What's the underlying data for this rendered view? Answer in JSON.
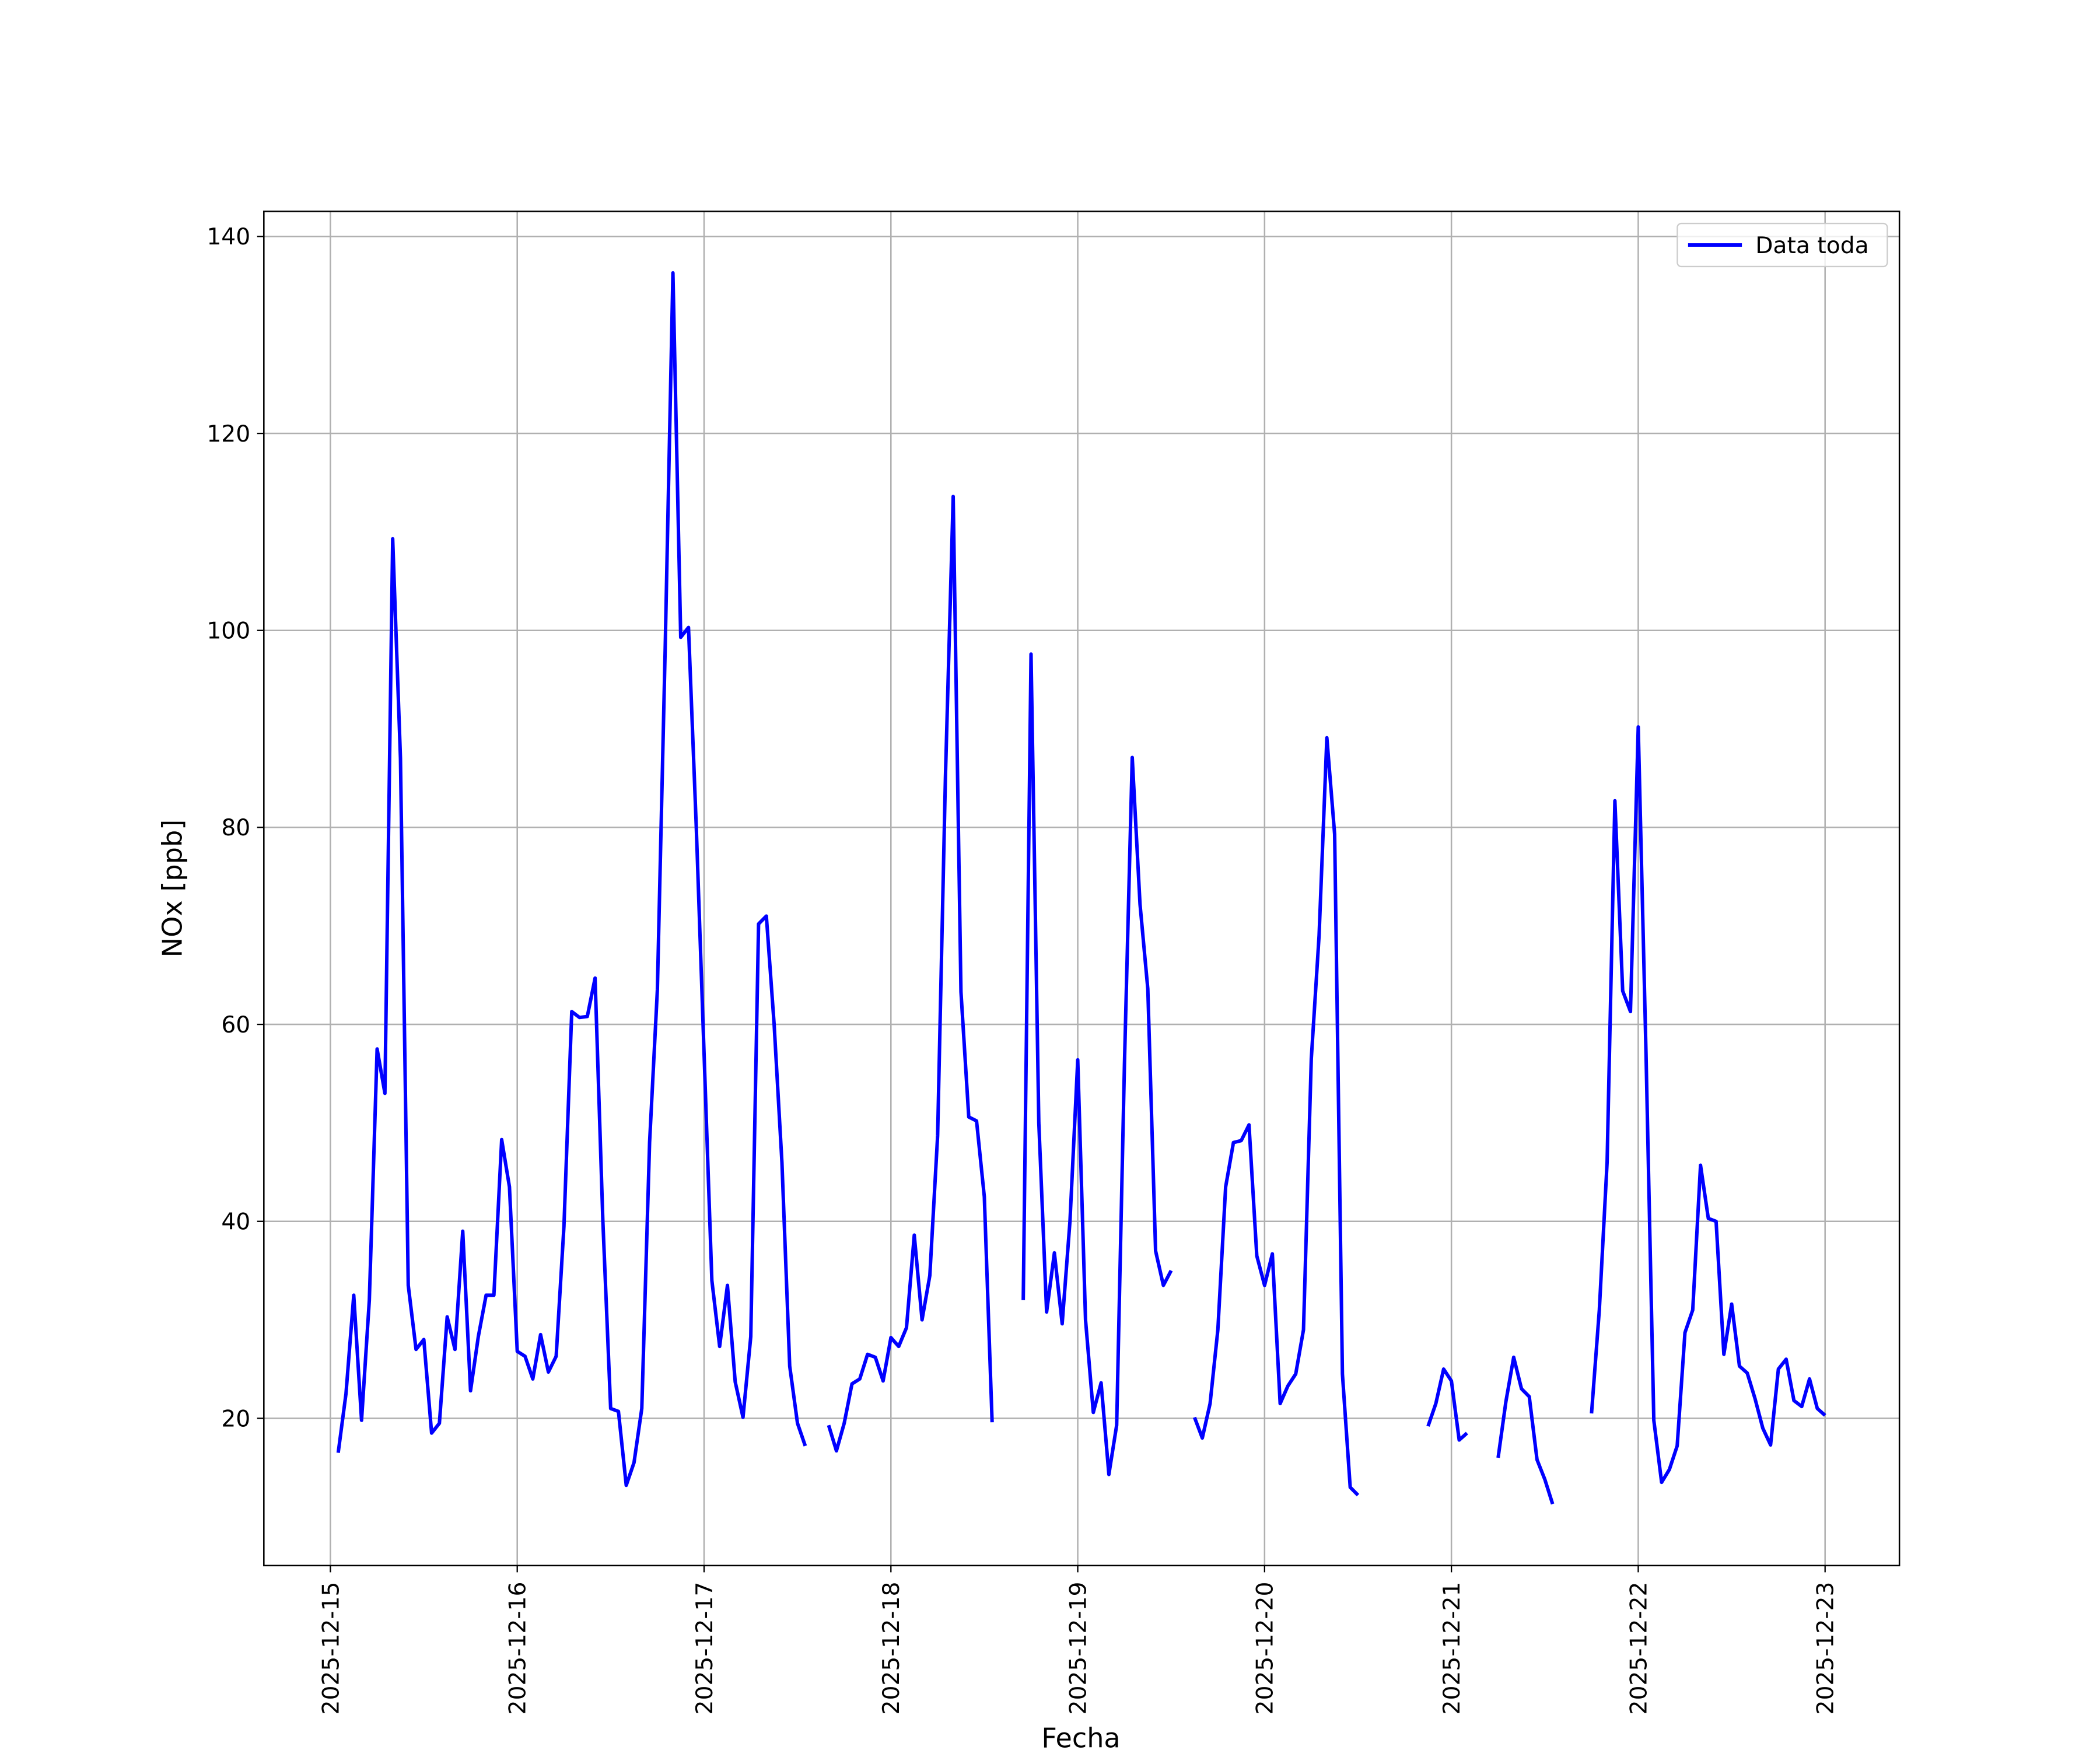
{
  "chart_data": {
    "type": "line",
    "xlabel": "Fecha",
    "ylabel": "NOx [ppb]",
    "x": [
      "2025-12-15T01:00",
      "2025-12-15T02:00",
      "2025-12-15T03:00",
      "2025-12-15T04:00",
      "2025-12-15T05:00",
      "2025-12-15T06:00",
      "2025-12-15T07:00",
      "2025-12-15T08:00",
      "2025-12-15T09:00",
      "2025-12-15T10:00",
      "2025-12-15T11:00",
      "2025-12-15T12:00",
      "2025-12-15T13:00",
      "2025-12-15T14:00",
      "2025-12-15T15:00",
      "2025-12-15T16:00",
      "2025-12-15T17:00",
      "2025-12-15T18:00",
      "2025-12-15T19:00",
      "2025-12-15T20:00",
      "2025-12-15T21:00",
      "2025-12-15T22:00",
      "2025-12-15T23:00",
      "2025-12-16T00:00",
      "2025-12-16T01:00",
      "2025-12-16T02:00",
      "2025-12-16T03:00",
      "2025-12-16T04:00",
      "2025-12-16T05:00",
      "2025-12-16T06:00",
      "2025-12-16T07:00",
      "2025-12-16T08:00",
      "2025-12-16T09:00",
      "2025-12-16T10:00",
      "2025-12-16T11:00",
      "2025-12-16T12:00",
      "2025-12-16T13:00",
      "2025-12-16T14:00",
      "2025-12-16T15:00",
      "2025-12-16T16:00",
      "2025-12-16T17:00",
      "2025-12-16T18:00",
      "2025-12-16T19:00",
      "2025-12-16T20:00",
      "2025-12-16T21:00",
      "2025-12-16T22:00",
      "2025-12-16T23:00",
      "2025-12-17T00:00",
      "2025-12-17T01:00",
      "2025-12-17T02:00",
      "2025-12-17T03:00",
      "2025-12-17T04:00",
      "2025-12-17T05:00",
      "2025-12-17T06:00",
      "2025-12-17T07:00",
      "2025-12-17T08:00",
      "2025-12-17T09:00",
      "2025-12-17T10:00",
      "2025-12-17T11:00",
      "2025-12-17T12:00",
      "2025-12-17T13:00",
      "2025-12-17T14:00",
      "2025-12-17T15:00",
      "2025-12-17T16:00",
      "2025-12-17T17:00",
      "2025-12-17T18:00",
      "2025-12-17T19:00",
      "2025-12-17T20:00",
      "2025-12-17T21:00",
      "2025-12-17T22:00",
      "2025-12-17T23:00",
      "2025-12-18T00:00",
      "2025-12-18T01:00",
      "2025-12-18T02:00",
      "2025-12-18T03:00",
      "2025-12-18T04:00",
      "2025-12-18T05:00",
      "2025-12-18T06:00",
      "2025-12-18T07:00",
      "2025-12-18T08:00",
      "2025-12-18T09:00",
      "2025-12-18T10:00",
      "2025-12-18T11:00",
      "2025-12-18T12:00",
      "2025-12-18T13:00",
      "2025-12-18T14:00",
      "2025-12-18T15:00",
      "2025-12-18T16:00",
      "2025-12-18T17:00",
      "2025-12-18T18:00",
      "2025-12-18T19:00",
      "2025-12-18T20:00",
      "2025-12-18T21:00",
      "2025-12-18T22:00",
      "2025-12-18T23:00",
      "2025-12-19T00:00",
      "2025-12-19T01:00",
      "2025-12-19T02:00",
      "2025-12-19T03:00",
      "2025-12-19T04:00",
      "2025-12-19T05:00",
      "2025-12-19T06:00",
      "2025-12-19T07:00",
      "2025-12-19T08:00",
      "2025-12-19T09:00",
      "2025-12-19T10:00",
      "2025-12-19T11:00",
      "2025-12-19T12:00",
      "2025-12-19T13:00",
      "2025-12-19T14:00",
      "2025-12-19T15:00",
      "2025-12-19T16:00",
      "2025-12-19T17:00",
      "2025-12-19T18:00",
      "2025-12-19T19:00",
      "2025-12-19T20:00",
      "2025-12-19T21:00",
      "2025-12-19T22:00",
      "2025-12-19T23:00",
      "2025-12-20T00:00",
      "2025-12-20T01:00",
      "2025-12-20T02:00",
      "2025-12-20T03:00",
      "2025-12-20T04:00",
      "2025-12-20T05:00",
      "2025-12-20T06:00",
      "2025-12-20T07:00",
      "2025-12-20T08:00",
      "2025-12-20T09:00",
      "2025-12-20T10:00",
      "2025-12-20T11:00",
      "2025-12-20T12:00",
      "2025-12-20T13:00",
      "2025-12-20T14:00",
      "2025-12-20T15:00",
      "2025-12-20T16:00",
      "2025-12-20T17:00",
      "2025-12-20T18:00",
      "2025-12-20T19:00",
      "2025-12-20T20:00",
      "2025-12-20T21:00",
      "2025-12-20T22:00",
      "2025-12-20T23:00",
      "2025-12-21T00:00",
      "2025-12-21T01:00",
      "2025-12-21T02:00",
      "2025-12-21T03:00",
      "2025-12-21T04:00",
      "2025-12-21T05:00",
      "2025-12-21T06:00",
      "2025-12-21T07:00",
      "2025-12-21T08:00",
      "2025-12-21T09:00",
      "2025-12-21T10:00",
      "2025-12-21T11:00",
      "2025-12-21T12:00",
      "2025-12-21T13:00",
      "2025-12-21T14:00",
      "2025-12-21T15:00",
      "2025-12-21T16:00",
      "2025-12-21T17:00",
      "2025-12-21T18:00",
      "2025-12-21T19:00",
      "2025-12-21T20:00",
      "2025-12-21T21:00",
      "2025-12-21T22:00",
      "2025-12-21T23:00",
      "2025-12-22T00:00",
      "2025-12-22T01:00",
      "2025-12-22T02:00",
      "2025-12-22T03:00",
      "2025-12-22T04:00",
      "2025-12-22T05:00",
      "2025-12-22T06:00",
      "2025-12-22T07:00",
      "2025-12-22T08:00",
      "2025-12-22T09:00",
      "2025-12-22T10:00",
      "2025-12-22T11:00",
      "2025-12-22T12:00",
      "2025-12-22T13:00",
      "2025-12-22T14:00",
      "2025-12-22T15:00",
      "2025-12-22T16:00",
      "2025-12-22T17:00",
      "2025-12-22T18:00",
      "2025-12-22T19:00",
      "2025-12-22T20:00",
      "2025-12-22T21:00",
      "2025-12-22T22:00",
      "2025-12-22T23:00",
      "2025-12-23T00:00"
    ],
    "series": [
      {
        "name": "Data toda",
        "color": "#0000ff",
        "values": [
          16.5,
          22.5,
          32.5,
          19.8,
          32,
          57.5,
          53,
          109.3,
          87,
          33.5,
          27,
          28,
          18.5,
          19.5,
          30.3,
          27,
          39,
          22.8,
          28.3,
          32.5,
          32.5,
          48.3,
          43.5,
          26.8,
          26.3,
          24,
          28.5,
          24.7,
          26.3,
          39.5,
          61.3,
          60.7,
          60.8,
          64.7,
          40,
          21,
          20.7,
          13.2,
          15.5,
          21,
          48,
          63.5,
          98,
          136.3,
          99.3,
          100.3,
          80,
          57,
          34,
          27.3,
          33.5,
          23.7,
          20.1,
          28.3,
          70.2,
          71,
          60,
          46,
          25.3,
          19.5,
          17.2,
          null,
          null,
          19.3,
          16.7,
          19.5,
          23.5,
          24,
          26.5,
          26.2,
          23.8,
          28.2,
          27.3,
          29.2,
          38.6,
          30,
          34.5,
          48.7,
          85,
          113.6,
          63.3,
          50.6,
          50.2,
          42.5,
          19.6,
          null,
          null,
          null,
          32,
          97.6,
          50,
          30.8,
          36.8,
          29.6,
          40,
          56.4,
          30,
          20.6,
          23.6,
          14.3,
          19.3,
          56,
          87.1,
          72.2,
          63.6,
          37,
          33.5,
          35,
          null,
          null,
          20.1,
          18,
          21.5,
          29,
          43.5,
          48,
          48.2,
          49.8,
          36.5,
          33.5,
          36.7,
          21.5,
          23.3,
          24.5,
          29,
          56.5,
          69,
          89.1,
          79.3,
          24.5,
          13,
          12.2,
          null,
          null,
          null,
          null,
          null,
          null,
          null,
          null,
          19.2,
          21.5,
          25,
          23.8,
          17.8,
          18.5,
          null,
          null,
          null,
          16,
          21.7,
          26.2,
          23,
          22.2,
          15.8,
          13.8,
          11.3,
          null,
          null,
          null,
          null,
          20.5,
          31,
          46,
          82.7,
          63.4,
          61.3,
          90.2,
          57,
          19.8,
          13.5,
          14.8,
          17.2,
          28.7,
          31,
          45.7,
          40.3,
          40,
          26.5,
          31.6,
          25.3,
          24.6,
          22,
          19,
          17.3,
          25,
          26,
          21.8,
          21.2,
          24,
          21,
          20.3
        ]
      }
    ],
    "xlim": [
      "2025-12-14T15:27",
      "2025-12-23T09:33"
    ],
    "xticks": [
      "2025-12-15",
      "2025-12-16",
      "2025-12-17",
      "2025-12-18",
      "2025-12-19",
      "2025-12-20",
      "2025-12-21",
      "2025-12-22",
      "2025-12-23"
    ],
    "ylim": [
      5.05,
      142.55
    ],
    "yticks": [
      20,
      40,
      60,
      80,
      100,
      120,
      140
    ],
    "grid": true,
    "legend": "upper right"
  }
}
